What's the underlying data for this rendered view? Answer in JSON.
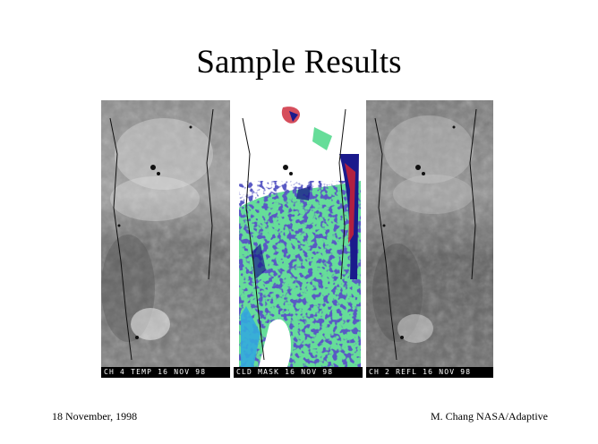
{
  "slide": {
    "title": "Sample Results"
  },
  "panels": [
    {
      "caption": "CH 4 TEMP 16 NOV 98",
      "style": "grayscale-thermal"
    },
    {
      "caption": "CLD MASK 16 NOV 98",
      "style": "cloud-mask"
    },
    {
      "caption": "CH 2 REFL 16 NOV 98",
      "style": "grayscale-reflectance"
    }
  ],
  "mask_colors": {
    "clear": "#66dd99",
    "cloud": "#ffffff",
    "deep": "#1a1a8c",
    "edge": "#cc2233",
    "water": "#33aadd"
  },
  "footer": {
    "date": "18 November, 1998",
    "author": "M. Chang NASA/Adaptive"
  }
}
